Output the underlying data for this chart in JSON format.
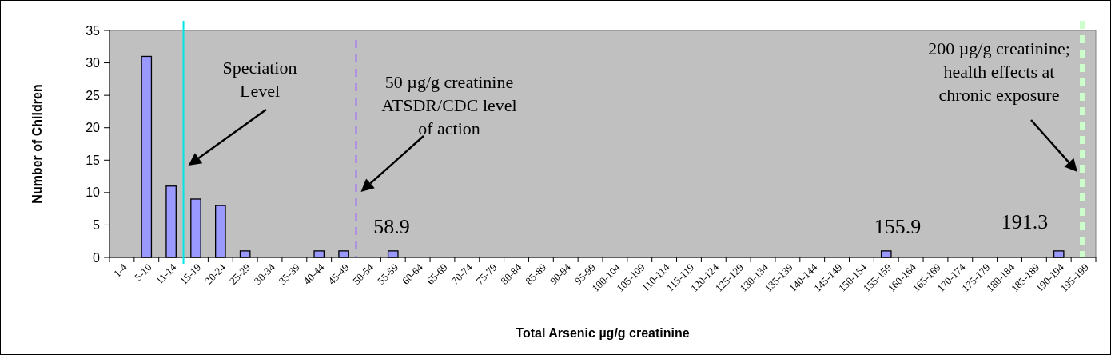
{
  "chart_data": {
    "type": "bar",
    "xlabel": "Total Arsenic µg/g creatinine",
    "ylabel": "Number of Children",
    "categories": [
      "1-4",
      "5-10",
      "11-14",
      "15-19",
      "20-24",
      "25-29",
      "30-34",
      "35-39",
      "40-44",
      "45-49",
      "50-54",
      "55-59",
      "60-64",
      "65-69",
      "70-74",
      "75-79",
      "80-84",
      "85-89",
      "90-94",
      "95-99",
      "100-104",
      "105-109",
      "110-114",
      "115-119",
      "120-124",
      "125-129",
      "130-134",
      "135-139",
      "140-144",
      "145-149",
      "150-154",
      "155-159",
      "160-164",
      "165-169",
      "170-174",
      "175-179",
      "180-184",
      "185-189",
      "190-194",
      "195-199"
    ],
    "values": [
      0,
      31,
      11,
      9,
      8,
      1,
      0,
      0,
      1,
      1,
      0,
      1,
      0,
      0,
      0,
      0,
      0,
      0,
      0,
      0,
      0,
      0,
      0,
      0,
      0,
      0,
      0,
      0,
      0,
      0,
      0,
      1,
      0,
      0,
      0,
      0,
      0,
      0,
      1,
      0
    ],
    "color": "#9999ff",
    "ylim": [
      0,
      35
    ],
    "yticks": [
      0,
      5,
      10,
      15,
      20,
      25,
      30,
      35
    ],
    "grid": false,
    "ref_lines": [
      {
        "axis": "x",
        "value": "15-19",
        "label": "Speciation Level",
        "color": "#00e5e5",
        "line_style": "solid"
      },
      {
        "axis": "x",
        "value": "50-54",
        "label": "50 µg/g creatinine ATSDR/CDC level of action",
        "color": "#9966ff",
        "line_style": "dashed"
      },
      {
        "axis": "x",
        "value": "195-199",
        "label": "200 µg/g creatinine; health effects at chronic exposure",
        "color": "#ccffcc",
        "line_style": "dashed"
      }
    ],
    "annotations": [
      "58.9",
      "155.9",
      "191.3"
    ]
  }
}
